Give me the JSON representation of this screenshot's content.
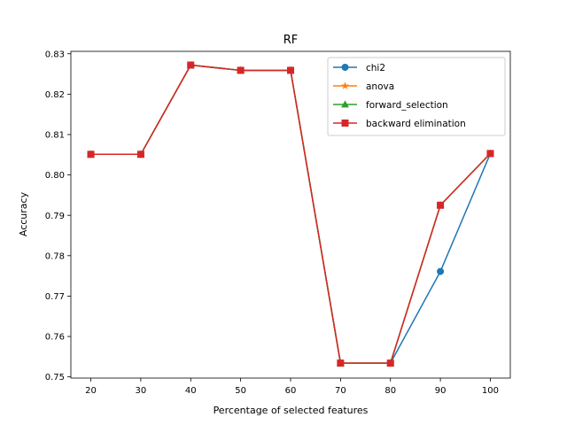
{
  "chart_data": {
    "type": "line",
    "title": "RF",
    "xlabel": "Percentage of selected features",
    "ylabel": "Accuracy",
    "x": [
      20,
      30,
      40,
      50,
      60,
      70,
      80,
      90,
      100
    ],
    "xticks": [
      "20",
      "30",
      "40",
      "50",
      "60",
      "70",
      "80",
      "90",
      "100"
    ],
    "xlim": [
      16,
      104
    ],
    "yticks": [
      "0.75",
      "0.76",
      "0.77",
      "0.78",
      "0.79",
      "0.80",
      "0.81",
      "0.82",
      "0.83"
    ],
    "ytick_values": [
      0.75,
      0.76,
      0.77,
      0.78,
      0.79,
      0.8,
      0.81,
      0.82,
      0.83
    ],
    "ylim": [
      0.7497,
      0.8306
    ],
    "grid": false,
    "legend_position": "top-right",
    "series": [
      {
        "name": "chi2",
        "color": "#1f77b4",
        "marker": "circle",
        "values": [
          0.8051,
          0.8051,
          0.8272,
          0.8259,
          0.8259,
          0.7534,
          0.7534,
          0.7761,
          0.8053
        ]
      },
      {
        "name": "anova",
        "color": "#ff7f0e",
        "marker": "star",
        "values": [
          0.8051,
          0.8051,
          0.8272,
          0.8259,
          0.8259,
          0.7534,
          0.7534,
          0.7925,
          0.8053
        ]
      },
      {
        "name": "forward_selection",
        "color": "#2ca02c",
        "marker": "triangle",
        "values": [
          0.8051,
          0.8051,
          0.8272,
          0.8259,
          0.8259,
          0.7534,
          0.7534,
          0.7925,
          0.8053
        ]
      },
      {
        "name": "backward elimination",
        "color": "#d62728",
        "marker": "square",
        "values": [
          0.8051,
          0.8051,
          0.8272,
          0.8259,
          0.8259,
          0.7534,
          0.7534,
          0.7925,
          0.8053
        ]
      }
    ]
  }
}
